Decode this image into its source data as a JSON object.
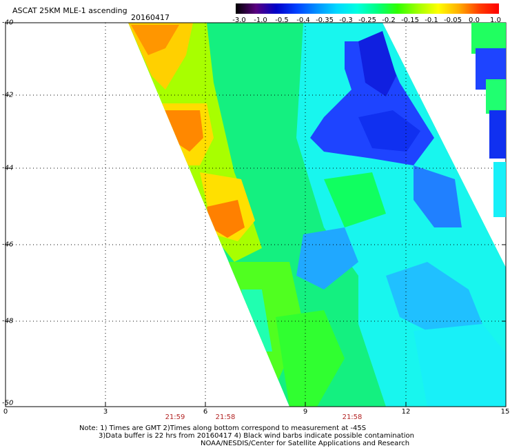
{
  "title": "ASCAT 25KM MLE-1 ascending",
  "date": "20160417",
  "colorbar": {
    "labels": [
      "-3.0",
      "-1.0",
      "-0.5",
      "-0.4",
      "-0.35",
      "-0.3",
      "-0.25",
      "-0.2",
      "-0.15",
      "-0.1",
      "-0.05",
      "0.0",
      "1.0"
    ],
    "colors": [
      "#000000",
      "#5a0080",
      "#0000c8",
      "#0040ff",
      "#0090ff",
      "#00d8ff",
      "#00ffe0",
      "#00ff80",
      "#30ff00",
      "#a0ff00",
      "#ffff00",
      "#ffb000",
      "#ff4000",
      "#ff0000"
    ]
  },
  "y_axis_labels": [
    "-40",
    "-42",
    "-44",
    "-46",
    "-48",
    "-50"
  ],
  "x_axis_labels": [
    "0",
    "3",
    "6",
    "9",
    "12",
    "15"
  ],
  "time_labels": [
    "21:59",
    "21:58",
    "21:58"
  ],
  "notes": [
    "Note: 1) Times are GMT 2)Times along bottom correspond to measurement at -45S",
    "3)Data buffer is 22 hrs from 20160417 4) Black wind barbs indicate possible contamination",
    "NOAA/NESDIS/Center for Satellite Applications and Research"
  ],
  "map_data": {
    "type": "swath",
    "lon_range": [
      0,
      15
    ],
    "lat_range": [
      -50,
      -40
    ]
  }
}
